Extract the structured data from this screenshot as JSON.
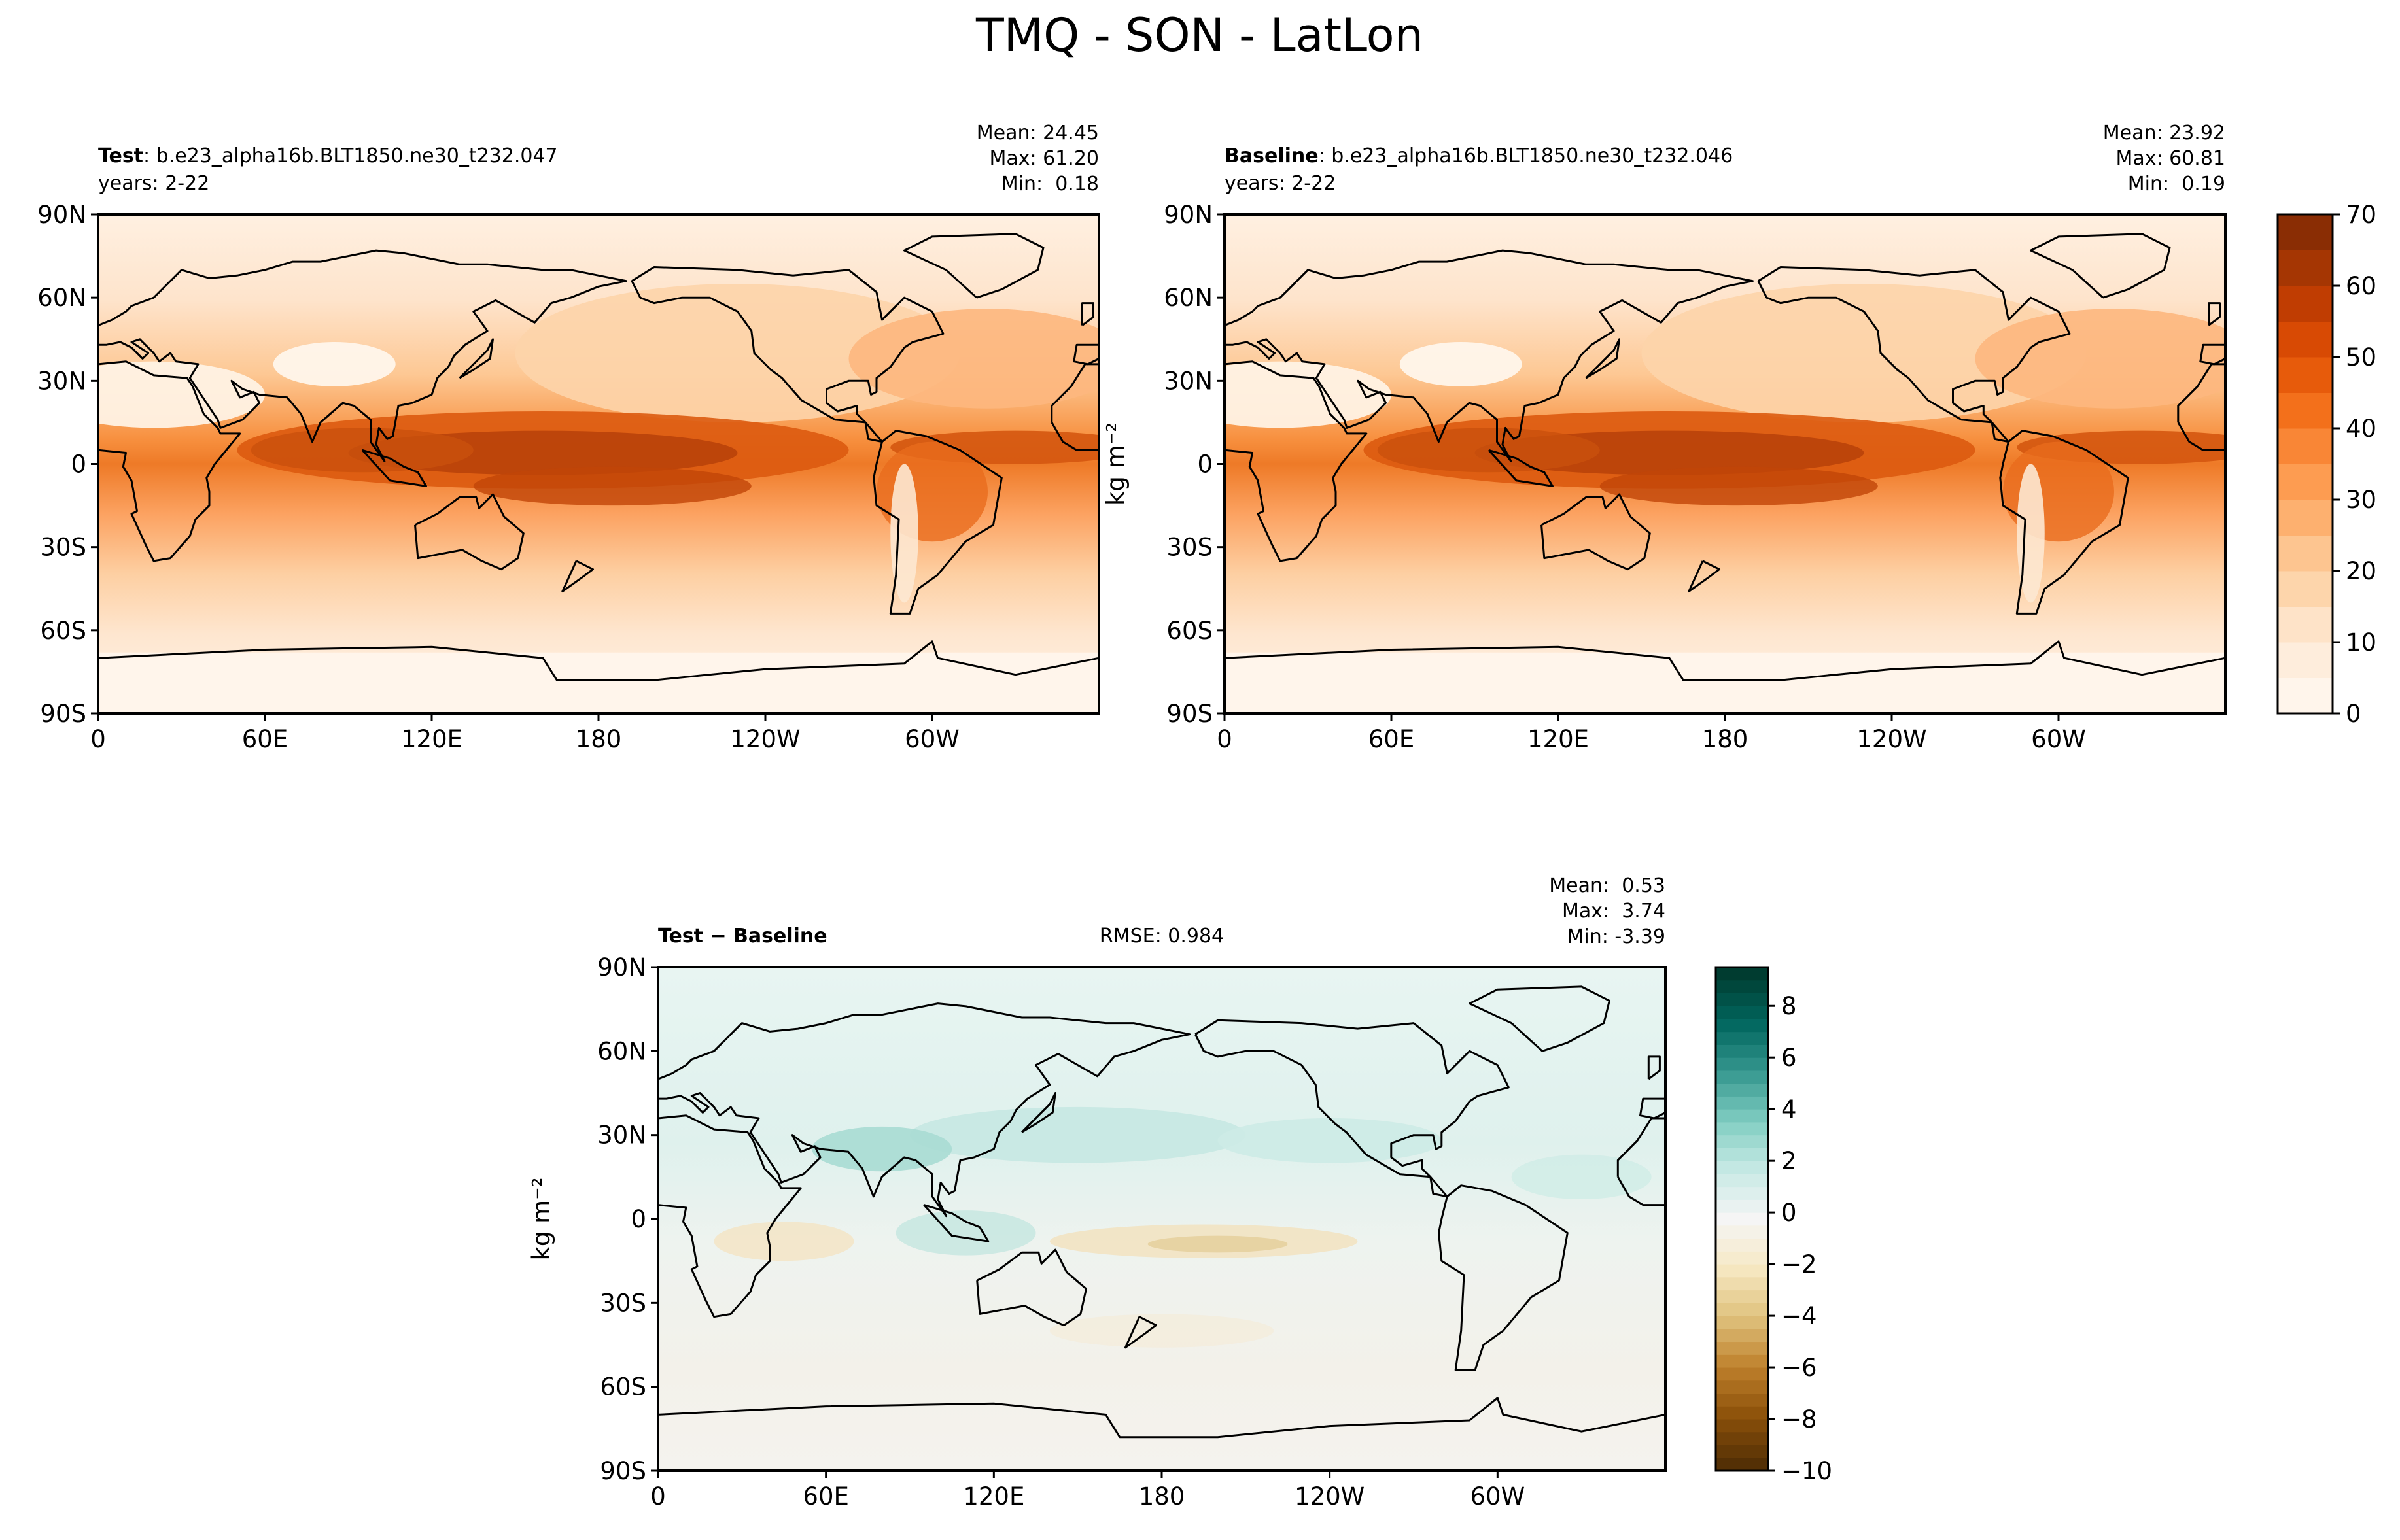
{
  "title": "TMQ - SON - LatLon",
  "chart_data": [
    {
      "type": "map",
      "name_bold": "Test",
      "name": ": b.e23_alpha16b.BLT1850.ne30_t232.047",
      "years": "years: 2-22",
      "stats": [
        "Mean: 24.45",
        "Max: 61.20",
        "Min:  0.18"
      ],
      "xlim": [
        0,
        360
      ],
      "xticks": [
        0,
        {
          "value": 60,
          "label": "60E"
        },
        {
          "value": 120,
          "label": "120E"
        },
        180,
        {
          "value": 240,
          "label": "120W"
        },
        {
          "value": 300,
          "label": "60W"
        }
      ],
      "ylim": [
        -90,
        90
      ],
      "yticks": [
        {
          "value": -90,
          "label": "90S"
        },
        {
          "value": -60,
          "label": "60S"
        },
        {
          "value": -30,
          "label": "30S"
        },
        0,
        {
          "value": 30,
          "label": "30N"
        },
        {
          "value": 60,
          "label": "60N"
        },
        {
          "value": 90,
          "label": "90N"
        }
      ]
    },
    {
      "type": "map",
      "name_bold": "Baseline",
      "name": ": b.e23_alpha16b.BLT1850.ne30_t232.046",
      "years": "years: 2-22",
      "stats": [
        "Mean: 23.92",
        "Max: 60.81",
        "Min:  0.19"
      ],
      "units_label": "kg m⁻²",
      "xlim": [
        0,
        360
      ],
      "xticks": [
        0,
        {
          "value": 60,
          "label": "60E"
        },
        {
          "value": 120,
          "label": "120E"
        },
        180,
        {
          "value": 240,
          "label": "120W"
        },
        {
          "value": 300,
          "label": "60W"
        }
      ],
      "ylim": [
        -90,
        90
      ],
      "yticks": [
        {
          "value": -90,
          "label": "90S"
        },
        {
          "value": -60,
          "label": "60S"
        },
        {
          "value": -30,
          "label": "30S"
        },
        0,
        {
          "value": 30,
          "label": "30N"
        },
        {
          "value": 60,
          "label": "60N"
        },
        {
          "value": 90,
          "label": "90N"
        }
      ],
      "colorbar": {
        "lim": [
          0,
          70
        ],
        "ticks": [
          0,
          10,
          20,
          30,
          40,
          50,
          60,
          70
        ],
        "levels": [
          0,
          5,
          10,
          15,
          20,
          25,
          30,
          35,
          40,
          45,
          50,
          55,
          60,
          65,
          70
        ],
        "colors": [
          "#fff5eb",
          "#feeddc",
          "#fee3c8",
          "#fdd5ab",
          "#fdc590",
          "#fdb06f",
          "#fd9c51",
          "#f98636",
          "#f3701b",
          "#e75b0b",
          "#d84a04",
          "#c03d02",
          "#a53603",
          "#8a2d04"
        ]
      }
    },
    {
      "type": "map",
      "name_bold": "Test − Baseline",
      "rmse": "RMSE: 0.984",
      "stats": [
        "Mean:  0.53",
        "Max:  3.74",
        "Min: -3.39"
      ],
      "units_label": "kg m⁻²",
      "xlim": [
        0,
        360
      ],
      "xticks": [
        0,
        {
          "value": 60,
          "label": "60E"
        },
        {
          "value": 120,
          "label": "120E"
        },
        180,
        {
          "value": 240,
          "label": "120W"
        },
        {
          "value": 300,
          "label": "60W"
        }
      ],
      "ylim": [
        -90,
        90
      ],
      "yticks": [
        {
          "value": -90,
          "label": "90S"
        },
        {
          "value": -60,
          "label": "60S"
        },
        {
          "value": -30,
          "label": "30S"
        },
        0,
        {
          "value": 30,
          "label": "30N"
        },
        {
          "value": 60,
          "label": "60N"
        },
        {
          "value": 90,
          "label": "90N"
        }
      ],
      "colorbar": {
        "lim": [
          -10,
          9.5
        ],
        "ticks": [
          {
            "value": -10,
            "label": "−10"
          },
          {
            "value": -8,
            "label": "−8"
          },
          {
            "value": -6,
            "label": "−6"
          },
          {
            "value": -4,
            "label": "−4"
          },
          {
            "value": -2,
            "label": "−2"
          },
          0,
          2,
          4,
          6,
          8
        ],
        "levels": [
          -10,
          -9.5,
          -9,
          -8.5,
          -8,
          -7.5,
          -7,
          -6.5,
          -6,
          -5.5,
          -5,
          -4.5,
          -4,
          -3.5,
          -3,
          -2.5,
          -2,
          -1.5,
          -1,
          -0.5,
          0,
          0.5,
          1,
          1.5,
          2,
          2.5,
          3,
          3.5,
          4,
          4.5,
          5,
          5.5,
          6,
          6.5,
          7,
          7.5,
          8,
          8.5,
          9,
          9.5
        ],
        "cmap": [
          "#543005",
          "#8c510a",
          "#bf812d",
          "#dfc27d",
          "#f6e8c3",
          "#f5f5f5",
          "#c7eae5",
          "#80cdc1",
          "#35978f",
          "#01665e",
          "#003c30"
        ]
      }
    }
  ]
}
